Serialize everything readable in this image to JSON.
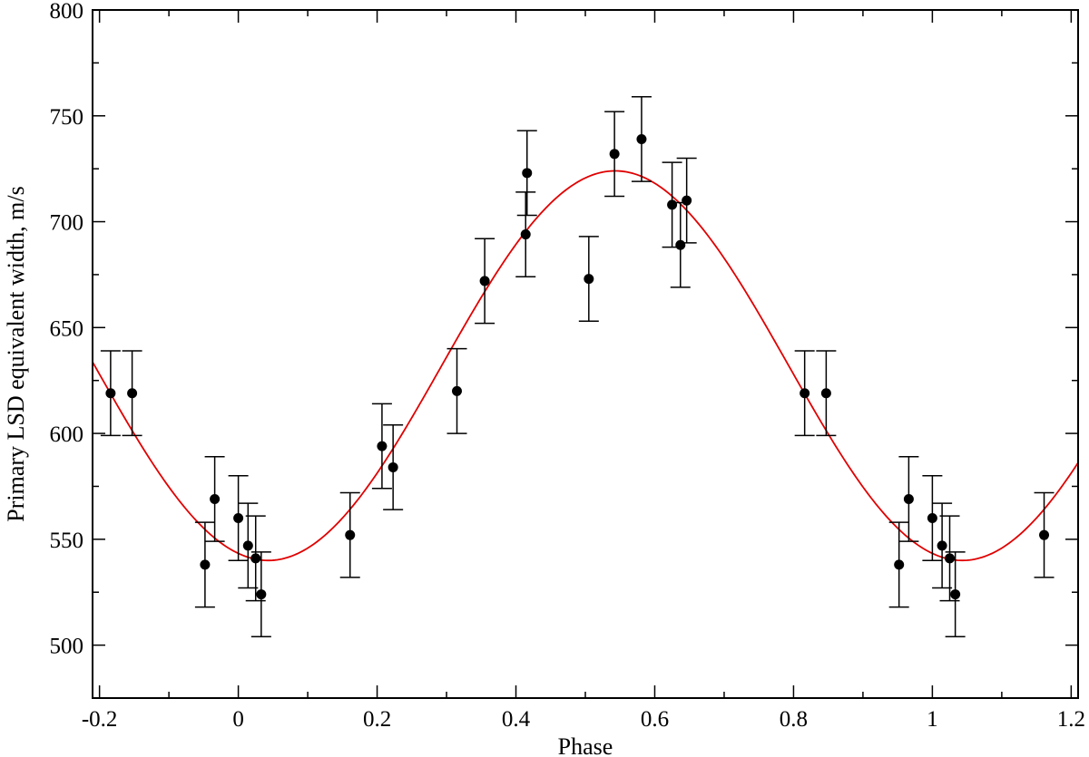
{
  "chart_data": {
    "type": "scatter",
    "xlabel": "Phase",
    "ylabel": "Primary LSD equivalent width, m/s",
    "xlim": [
      -0.21,
      1.21
    ],
    "ylim": [
      475,
      800
    ],
    "x_major_ticks": [
      -0.2,
      0,
      0.2,
      0.4,
      0.6,
      0.8,
      1,
      1.2
    ],
    "x_tick_labels": [
      "-0.2",
      "0",
      "0.2",
      "0.4",
      "0.6",
      "0.8",
      "1",
      "1.2"
    ],
    "x_minor_step": 0.1,
    "y_major_ticks": [
      500,
      550,
      600,
      650,
      700,
      750,
      800
    ],
    "y_tick_labels": [
      "500",
      "550",
      "600",
      "650",
      "700",
      "750",
      "800"
    ],
    "y_minor_step": 25,
    "grid": false,
    "series": [
      {
        "kind": "points-with-errorbars",
        "color": "#000000",
        "points": [
          {
            "x": -0.184,
            "y": 619,
            "err": 20
          },
          {
            "x": -0.153,
            "y": 619,
            "err": 20
          },
          {
            "x": -0.048,
            "y": 538,
            "err": 20
          },
          {
            "x": -0.034,
            "y": 569,
            "err": 20
          },
          {
            "x": 0.0,
            "y": 560,
            "err": 20
          },
          {
            "x": 0.014,
            "y": 547,
            "err": 20
          },
          {
            "x": 0.025,
            "y": 541,
            "err": 20
          },
          {
            "x": 0.033,
            "y": 524,
            "err": 20
          },
          {
            "x": 0.161,
            "y": 552,
            "err": 20
          },
          {
            "x": 0.207,
            "y": 594,
            "err": 20
          },
          {
            "x": 0.223,
            "y": 584,
            "err": 20
          },
          {
            "x": 0.315,
            "y": 620,
            "err": 20
          },
          {
            "x": 0.355,
            "y": 672,
            "err": 20
          },
          {
            "x": 0.414,
            "y": 694,
            "err": 20
          },
          {
            "x": 0.416,
            "y": 723,
            "err": 20
          },
          {
            "x": 0.505,
            "y": 673,
            "err": 20
          },
          {
            "x": 0.542,
            "y": 732,
            "err": 20
          },
          {
            "x": 0.581,
            "y": 739,
            "err": 20
          },
          {
            "x": 0.625,
            "y": 708,
            "err": 20
          },
          {
            "x": 0.637,
            "y": 689,
            "err": 20
          },
          {
            "x": 0.646,
            "y": 710,
            "err": 20
          },
          {
            "x": 0.816,
            "y": 619,
            "err": 20
          },
          {
            "x": 0.847,
            "y": 619,
            "err": 20
          },
          {
            "x": 0.952,
            "y": 538,
            "err": 20
          },
          {
            "x": 0.966,
            "y": 569,
            "err": 20
          },
          {
            "x": 1.0,
            "y": 560,
            "err": 20
          },
          {
            "x": 1.014,
            "y": 547,
            "err": 20
          },
          {
            "x": 1.025,
            "y": 541,
            "err": 20
          },
          {
            "x": 1.033,
            "y": 524,
            "err": 20
          },
          {
            "x": 1.161,
            "y": 552,
            "err": 20
          }
        ]
      },
      {
        "kind": "sinusoid-fit",
        "color": "#e00000",
        "mean": 632,
        "amplitude": 92,
        "period": 1.0,
        "max_phase": 0.543
      }
    ]
  }
}
